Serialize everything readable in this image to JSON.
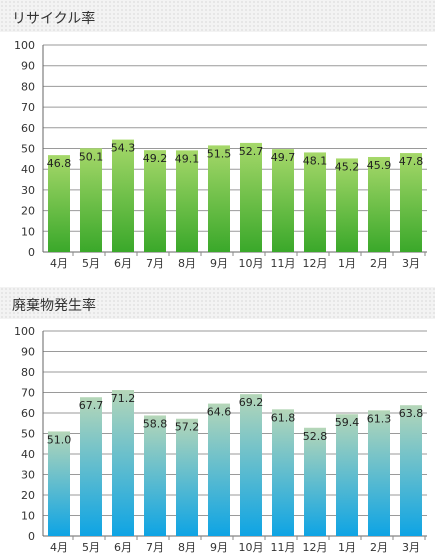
{
  "chart_data": [
    {
      "type": "bar",
      "title": "リサイクル率",
      "categories": [
        "4月",
        "5月",
        "6月",
        "7月",
        "8月",
        "9月",
        "10月",
        "11月",
        "12月",
        "1月",
        "2月",
        "3月"
      ],
      "values": [
        46.8,
        50.1,
        54.3,
        49.2,
        49.1,
        51.5,
        52.7,
        49.7,
        48.1,
        45.2,
        45.9,
        47.8
      ],
      "ylim": [
        0,
        100
      ],
      "yticks": [
        0,
        10,
        20,
        30,
        40,
        50,
        60,
        70,
        80,
        90,
        100
      ],
      "grid": true,
      "colors": {
        "top": "#a6d86a",
        "bottom": "#3aa82a"
      }
    },
    {
      "type": "bar",
      "title": "廃棄物発生率",
      "categories": [
        "4月",
        "5月",
        "6月",
        "7月",
        "8月",
        "9月",
        "10月",
        "11月",
        "12月",
        "1月",
        "2月",
        "3月"
      ],
      "values": [
        51.0,
        67.7,
        71.2,
        58.8,
        57.2,
        64.6,
        69.2,
        61.8,
        52.8,
        59.4,
        61.3,
        63.8
      ],
      "ylim": [
        0,
        100
      ],
      "yticks": [
        0,
        10,
        20,
        30,
        40,
        50,
        60,
        70,
        80,
        90,
        100
      ],
      "grid": true,
      "colors": {
        "top": "#b5d6b8",
        "bottom": "#0ea4e4"
      }
    }
  ]
}
